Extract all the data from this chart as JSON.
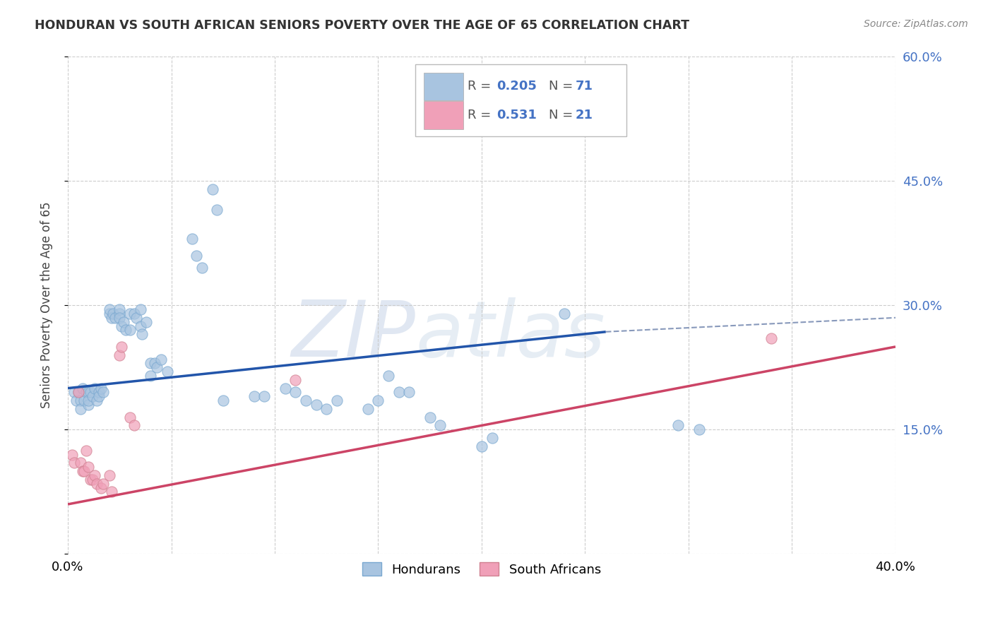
{
  "title": "HONDURAN VS SOUTH AFRICAN SENIORS POVERTY OVER THE AGE OF 65 CORRELATION CHART",
  "source": "Source: ZipAtlas.com",
  "ylabel": "Seniors Poverty Over the Age of 65",
  "xlim": [
    0.0,
    0.4
  ],
  "ylim": [
    0.0,
    0.6
  ],
  "grid_color": "#cccccc",
  "background_color": "#ffffff",
  "honduran_color": "#a8c4e0",
  "sa_color": "#f0a0b8",
  "legend_label_1": "Hondurans",
  "legend_label_2": "South Africans",
  "honduran_scatter": [
    [
      0.003,
      0.195
    ],
    [
      0.004,
      0.185
    ],
    [
      0.005,
      0.195
    ],
    [
      0.006,
      0.185
    ],
    [
      0.006,
      0.175
    ],
    [
      0.007,
      0.2
    ],
    [
      0.008,
      0.185
    ],
    [
      0.009,
      0.195
    ],
    [
      0.01,
      0.195
    ],
    [
      0.01,
      0.18
    ],
    [
      0.01,
      0.185
    ],
    [
      0.011,
      0.195
    ],
    [
      0.012,
      0.19
    ],
    [
      0.013,
      0.2
    ],
    [
      0.014,
      0.185
    ],
    [
      0.015,
      0.195
    ],
    [
      0.015,
      0.19
    ],
    [
      0.016,
      0.2
    ],
    [
      0.017,
      0.195
    ],
    [
      0.02,
      0.29
    ],
    [
      0.02,
      0.295
    ],
    [
      0.021,
      0.285
    ],
    [
      0.022,
      0.29
    ],
    [
      0.023,
      0.285
    ],
    [
      0.025,
      0.29
    ],
    [
      0.025,
      0.295
    ],
    [
      0.025,
      0.285
    ],
    [
      0.026,
      0.275
    ],
    [
      0.027,
      0.28
    ],
    [
      0.028,
      0.27
    ],
    [
      0.03,
      0.29
    ],
    [
      0.03,
      0.27
    ],
    [
      0.032,
      0.29
    ],
    [
      0.033,
      0.285
    ],
    [
      0.035,
      0.295
    ],
    [
      0.035,
      0.275
    ],
    [
      0.036,
      0.265
    ],
    [
      0.038,
      0.28
    ],
    [
      0.04,
      0.23
    ],
    [
      0.04,
      0.215
    ],
    [
      0.042,
      0.23
    ],
    [
      0.043,
      0.225
    ],
    [
      0.045,
      0.235
    ],
    [
      0.048,
      0.22
    ],
    [
      0.06,
      0.38
    ],
    [
      0.062,
      0.36
    ],
    [
      0.065,
      0.345
    ],
    [
      0.07,
      0.44
    ],
    [
      0.072,
      0.415
    ],
    [
      0.075,
      0.185
    ],
    [
      0.09,
      0.19
    ],
    [
      0.095,
      0.19
    ],
    [
      0.105,
      0.2
    ],
    [
      0.11,
      0.195
    ],
    [
      0.115,
      0.185
    ],
    [
      0.12,
      0.18
    ],
    [
      0.125,
      0.175
    ],
    [
      0.13,
      0.185
    ],
    [
      0.145,
      0.175
    ],
    [
      0.15,
      0.185
    ],
    [
      0.155,
      0.215
    ],
    [
      0.16,
      0.195
    ],
    [
      0.165,
      0.195
    ],
    [
      0.175,
      0.165
    ],
    [
      0.18,
      0.155
    ],
    [
      0.2,
      0.13
    ],
    [
      0.205,
      0.14
    ],
    [
      0.24,
      0.29
    ],
    [
      0.295,
      0.155
    ],
    [
      0.305,
      0.15
    ]
  ],
  "sa_scatter": [
    [
      0.002,
      0.12
    ],
    [
      0.003,
      0.11
    ],
    [
      0.005,
      0.195
    ],
    [
      0.006,
      0.11
    ],
    [
      0.007,
      0.1
    ],
    [
      0.008,
      0.1
    ],
    [
      0.009,
      0.125
    ],
    [
      0.01,
      0.105
    ],
    [
      0.011,
      0.09
    ],
    [
      0.012,
      0.09
    ],
    [
      0.013,
      0.095
    ],
    [
      0.014,
      0.085
    ],
    [
      0.016,
      0.08
    ],
    [
      0.017,
      0.085
    ],
    [
      0.02,
      0.095
    ],
    [
      0.021,
      0.075
    ],
    [
      0.025,
      0.24
    ],
    [
      0.026,
      0.25
    ],
    [
      0.03,
      0.165
    ],
    [
      0.032,
      0.155
    ],
    [
      0.11,
      0.21
    ],
    [
      0.34,
      0.26
    ]
  ],
  "honduran_line": [
    0.0,
    0.2,
    0.26,
    0.268
  ],
  "sa_line": [
    0.0,
    0.06,
    0.4,
    0.25
  ],
  "dashed_line": [
    0.26,
    0.268,
    0.4,
    0.285
  ],
  "watermark_zip": "ZIP",
  "watermark_atlas": "atlas"
}
